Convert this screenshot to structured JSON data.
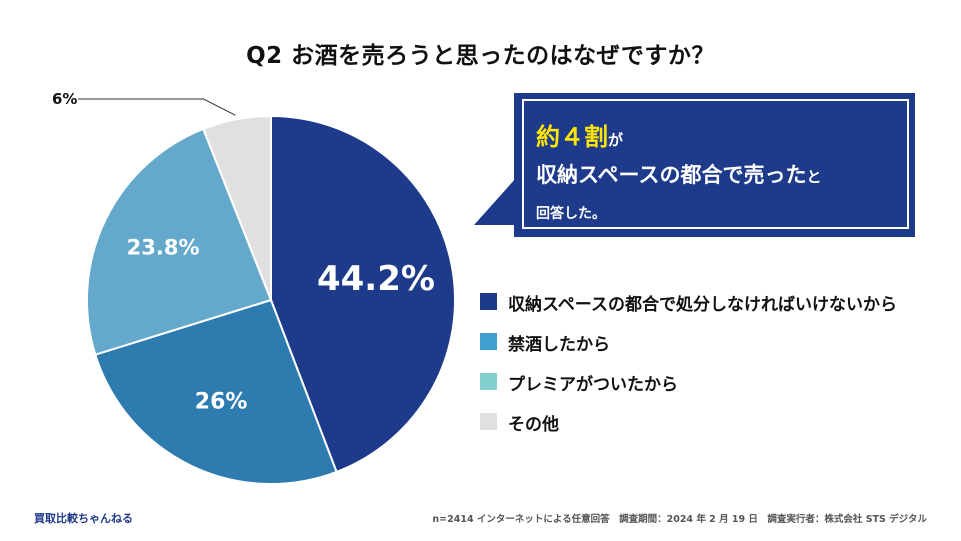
{
  "title": "Q2 お酒を売ろうと思ったのはなぜですか？",
  "chart_data": {
    "type": "pie",
    "title": "Q2 お酒を売ろうと思ったのはなぜですか？",
    "slices": [
      {
        "label": "収納スペースの都合で処分しなければいけないから",
        "value": 44.2,
        "display": "44.2%",
        "color": "#1e3a8a"
      },
      {
        "label": "禁酒したから",
        "value": 26,
        "display": "26%",
        "color": "#2e7bb0"
      },
      {
        "label": "プレミアがついたから",
        "value": 23.8,
        "display": "23.8%",
        "color": "#64a9cc"
      },
      {
        "label": "その他",
        "value": 6,
        "display": "6%",
        "color": "#e0e0e0"
      }
    ],
    "legend_position": "right"
  },
  "legend": [
    {
      "label": "収納スペースの都合で処分しなければいけないから",
      "color": "#1e3a8a"
    },
    {
      "label": "禁酒したから",
      "color": "#3e9fd0"
    },
    {
      "label": "プレミアがついたから",
      "color": "#86cfcf"
    },
    {
      "label": "その他",
      "color": "#e0e0e0"
    }
  ],
  "callout": {
    "highlight": "約４割",
    "suffix": "が",
    "line2": "収納スペースの都合で売った",
    "line2_suffix": "と",
    "line3": "回答した。"
  },
  "footer": {
    "brand": "買取比較ちゃんねる",
    "note": "n=2414 インターネットによる任意回答　調査期間：2024 年 2 月 19 日　調査実行者：株式会社 STS デジタル"
  }
}
